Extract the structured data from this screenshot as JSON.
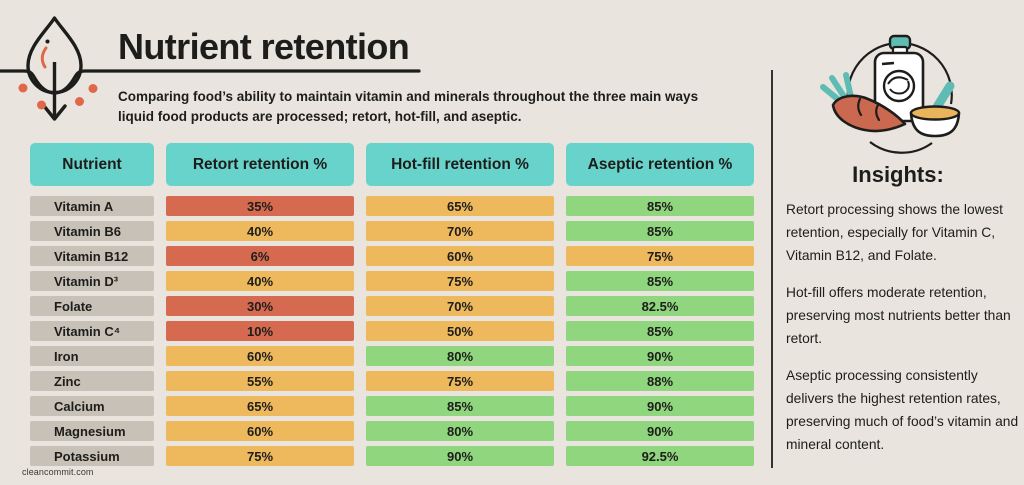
{
  "header": {
    "title": "Nutrient retention",
    "subtitle_line1": "Comparing food’s ability to maintain vitamin and minerals throughout the three main ways",
    "subtitle_line2": "liquid food products are processed; retort, hot-fill, and aseptic."
  },
  "chart_data": {
    "type": "table",
    "title": "Nutrient retention",
    "columns": [
      "Nutrient",
      "Retort retention %",
      "Hot-fill retention %",
      "Aseptic retention %"
    ],
    "rows": [
      {
        "nutrient": "Vitamin A",
        "cells": [
          {
            "label": "35%",
            "value": 35,
            "level": "red"
          },
          {
            "label": "65%",
            "value": 65,
            "level": "orange"
          },
          {
            "label": "85%",
            "value": 85,
            "level": "green"
          }
        ]
      },
      {
        "nutrient": "Vitamin B6",
        "cells": [
          {
            "label": "40%",
            "value": 40,
            "level": "orange"
          },
          {
            "label": "70%",
            "value": 70,
            "level": "orange"
          },
          {
            "label": "85%",
            "value": 85,
            "level": "green"
          }
        ]
      },
      {
        "nutrient": "Vitamin B12",
        "cells": [
          {
            "label": "6%",
            "value": 6,
            "level": "red"
          },
          {
            "label": "60%",
            "value": 60,
            "level": "orange"
          },
          {
            "label": "75%",
            "value": 75,
            "level": "orange"
          }
        ]
      },
      {
        "nutrient": "Vitamin D³",
        "cells": [
          {
            "label": "40%",
            "value": 40,
            "level": "orange"
          },
          {
            "label": "75%",
            "value": 75,
            "level": "orange"
          },
          {
            "label": "85%",
            "value": 85,
            "level": "green"
          }
        ]
      },
      {
        "nutrient": "Folate",
        "cells": [
          {
            "label": "30%",
            "value": 30,
            "level": "red"
          },
          {
            "label": "70%",
            "value": 70,
            "level": "orange"
          },
          {
            "label": "82.5%",
            "value": 82.5,
            "level": "green"
          }
        ]
      },
      {
        "nutrient": "Vitamin C⁴",
        "cells": [
          {
            "label": "10%",
            "value": 10,
            "level": "red"
          },
          {
            "label": "50%",
            "value": 50,
            "level": "orange"
          },
          {
            "label": "85%",
            "value": 85,
            "level": "green"
          }
        ]
      },
      {
        "nutrient": "Iron",
        "cells": [
          {
            "label": "60%",
            "value": 60,
            "level": "orange"
          },
          {
            "label": "80%",
            "value": 80,
            "level": "green"
          },
          {
            "label": "90%",
            "value": 90,
            "level": "green"
          }
        ]
      },
      {
        "nutrient": "Zinc",
        "cells": [
          {
            "label": "55%",
            "value": 55,
            "level": "orange"
          },
          {
            "label": "75%",
            "value": 75,
            "level": "orange"
          },
          {
            "label": "88%",
            "value": 88,
            "level": "green"
          }
        ]
      },
      {
        "nutrient": "Calcium",
        "cells": [
          {
            "label": "65%",
            "value": 65,
            "level": "orange"
          },
          {
            "label": "85%",
            "value": 85,
            "level": "green"
          },
          {
            "label": "90%",
            "value": 90,
            "level": "green"
          }
        ]
      },
      {
        "nutrient": "Magnesium",
        "cells": [
          {
            "label": "60%",
            "value": 60,
            "level": "orange"
          },
          {
            "label": "80%",
            "value": 80,
            "level": "green"
          },
          {
            "label": "90%",
            "value": 90,
            "level": "green"
          }
        ]
      },
      {
        "nutrient": "Potassium",
        "cells": [
          {
            "label": "75%",
            "value": 75,
            "level": "orange"
          },
          {
            "label": "90%",
            "value": 90,
            "level": "green"
          },
          {
            "label": "92.5%",
            "value": 92.5,
            "level": "green"
          }
        ]
      }
    ],
    "layout": {
      "legend": "none",
      "grid": "off",
      "cell_color_meaning": "red = low retention, orange = moderate retention, green = high retention"
    }
  },
  "insights": {
    "heading": "Insights:",
    "paragraphs": [
      "Retort processing shows the lowest retention, especially for Vitamin C, Vitamin B12, and Folate.",
      "Hot-fill offers moderate retention, preserving most nutrients better than retort.",
      "Aseptic processing consistently delivers the highest retention rates, preserving much of food’s vitamin and mineral content."
    ]
  },
  "footer": {
    "brand": "cleancommit.com"
  },
  "icons": {
    "drop": "water-drop-absorption-icon",
    "illustration": "food-pouch-carrot-bowl-illustration"
  },
  "colors": {
    "background": "#e9e4dd",
    "header_teal": "#67d3cb",
    "nutrient_gray": "#c7c1b8",
    "red": "#d66a50",
    "orange": "#edb95c",
    "green": "#90d67e",
    "text": "#1d1d1b",
    "accent_dots": "#e0674a",
    "illustration_teal": "#5fbcb4",
    "illustration_carrot": "#cb6850",
    "illustration_puree": "#e9b45c"
  }
}
